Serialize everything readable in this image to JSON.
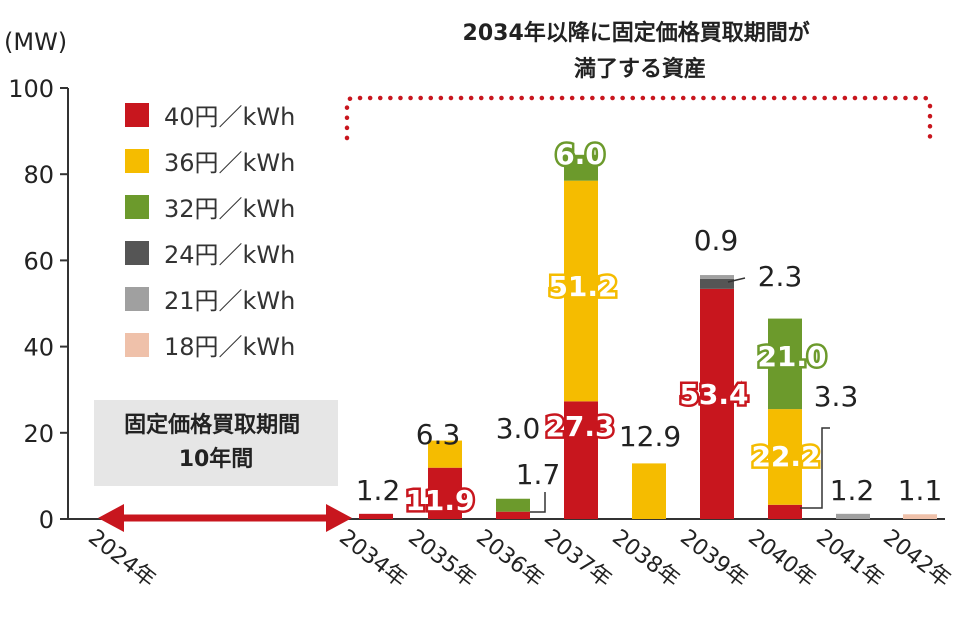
{
  "chart_data": {
    "type": "bar",
    "stacked": true,
    "ylabel": "(MW)",
    "ylim": [
      0,
      100
    ],
    "yticks": [
      0,
      20,
      40,
      60,
      80,
      100
    ],
    "categories": [
      "2024年",
      "2034年",
      "2035年",
      "2036年",
      "2037年",
      "2038年",
      "2039年",
      "2040年",
      "2041年",
      "2042年"
    ],
    "series": [
      {
        "name": "40円／kWh",
        "color": "#c8161e",
        "values": [
          0,
          1.2,
          11.9,
          1.7,
          27.3,
          0,
          53.4,
          3.3,
          0,
          0
        ]
      },
      {
        "name": "36円／kWh",
        "color": "#f5bc00",
        "values": [
          0,
          0,
          6.3,
          0,
          51.2,
          12.9,
          0,
          22.2,
          0,
          0
        ]
      },
      {
        "name": "32円／kWh",
        "color": "#6c9a2c",
        "values": [
          0,
          0,
          0,
          3.0,
          6.0,
          0,
          0,
          21.0,
          0,
          0
        ]
      },
      {
        "name": "24円／kWh",
        "color": "#555555",
        "values": [
          0,
          0,
          0,
          0,
          0,
          0,
          2.3,
          0,
          0,
          0
        ]
      },
      {
        "name": "21円／kWh",
        "color": "#a0a0a0",
        "values": [
          0,
          0,
          0,
          0,
          0,
          0,
          0.9,
          0,
          1.2,
          0
        ]
      },
      {
        "name": "18円／kWh",
        "color": "#efc1aa",
        "values": [
          0,
          0,
          0,
          0,
          0,
          0,
          0,
          0,
          0,
          1.1
        ]
      }
    ],
    "legend_position": "top-left",
    "grid": false,
    "annotations": {
      "fixed_period": "固定価格買取期間\n10年間",
      "expiring": "2034年以降に固定価格買取期間が\n満了する資産"
    },
    "data_labels": [
      {
        "text": "1.2",
        "cat": 1,
        "style": "plain"
      },
      {
        "text": "11.9",
        "cat": 2,
        "style": "red"
      },
      {
        "text": "6.3",
        "cat": 2,
        "style": "plain"
      },
      {
        "text": "3.0",
        "cat": 3,
        "style": "plain"
      },
      {
        "text": "1.7",
        "cat": 3,
        "style": "plain"
      },
      {
        "text": "27.3",
        "cat": 4,
        "style": "red"
      },
      {
        "text": "51.2",
        "cat": 4,
        "style": "yellow"
      },
      {
        "text": "6.0",
        "cat": 4,
        "style": "green"
      },
      {
        "text": "12.9",
        "cat": 5,
        "style": "plain"
      },
      {
        "text": "53.4",
        "cat": 6,
        "style": "red"
      },
      {
        "text": "2.3",
        "cat": 6,
        "style": "plain"
      },
      {
        "text": "0.9",
        "cat": 6,
        "style": "plain"
      },
      {
        "text": "22.2",
        "cat": 7,
        "style": "yellow"
      },
      {
        "text": "21.0",
        "cat": 7,
        "style": "green"
      },
      {
        "text": "3.3",
        "cat": 7,
        "style": "plain"
      },
      {
        "text": "1.2",
        "cat": 8,
        "style": "plain"
      },
      {
        "text": "1.1",
        "cat": 9,
        "style": "plain"
      }
    ]
  }
}
